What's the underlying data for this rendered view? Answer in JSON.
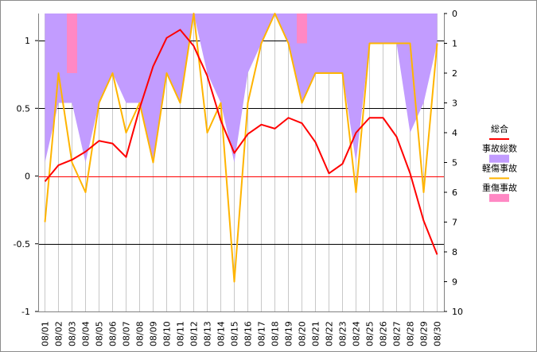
{
  "chart_data": {
    "type": "line",
    "title": "",
    "xlabel": "",
    "ylabel": "",
    "categories": [
      "08/01",
      "08/02",
      "08/03",
      "08/04",
      "08/05",
      "08/06",
      "08/07",
      "08/08",
      "08/09",
      "08/10",
      "08/11",
      "08/12",
      "08/13",
      "08/14",
      "08/15",
      "08/16",
      "08/17",
      "08/18",
      "08/19",
      "08/20",
      "08/21",
      "08/22",
      "08/23",
      "08/24",
      "08/25",
      "08/26",
      "08/27",
      "08/28",
      "08/29",
      "08/30"
    ],
    "axes": {
      "left": {
        "range": [
          -1,
          1.2
        ],
        "ticks": [
          1,
          0.5,
          0,
          -0.5,
          -1
        ],
        "tick_labels": [
          "1",
          "0.5",
          "0",
          "-0.5",
          "-1"
        ]
      },
      "right": {
        "range": [
          0,
          10
        ],
        "inverted": true,
        "ticks": [
          0,
          1,
          2,
          3,
          4,
          5,
          6,
          7,
          8,
          9,
          10
        ],
        "tick_labels": [
          "0",
          "1",
          "2",
          "3",
          "4",
          "5",
          "6",
          "7",
          "8",
          "9",
          "10"
        ]
      }
    },
    "grid": {
      "horizontal": true,
      "vertical": true,
      "zero_line_color": "#ff0000"
    },
    "legend": {
      "placement": "right"
    },
    "series": [
      {
        "name": "総合",
        "type": "line",
        "axis": "left",
        "color": "#ff0000",
        "values": [
          -0.04,
          0.08,
          0.12,
          0.18,
          0.26,
          0.24,
          0.14,
          0.5,
          0.81,
          1.02,
          1.08,
          0.96,
          0.74,
          0.41,
          0.17,
          0.31,
          0.38,
          0.35,
          0.43,
          0.39,
          0.25,
          0.02,
          0.09,
          0.32,
          0.43,
          0.43,
          0.29,
          0.02,
          -0.33,
          -0.58
        ]
      },
      {
        "name": "事故総数",
        "type": "area",
        "axis": "right",
        "color": "#c29cff",
        "values": [
          5,
          3,
          3,
          5,
          3,
          2,
          3,
          3,
          5,
          2,
          3,
          0,
          2,
          3,
          5,
          2,
          1,
          0,
          1,
          3,
          2,
          2,
          2,
          5,
          1,
          1,
          1,
          4,
          3,
          1
        ]
      },
      {
        "name": "軽傷事故",
        "type": "line",
        "axis": "right",
        "color": "#ffb400",
        "values": [
          7,
          2,
          5,
          6,
          3,
          2,
          4,
          3,
          5,
          2,
          3,
          0,
          4,
          3,
          9,
          3,
          1,
          0,
          1,
          3,
          2,
          2,
          2,
          6,
          1,
          1,
          1,
          1,
          6,
          1
        ]
      },
      {
        "name": "重傷事故",
        "type": "bar",
        "axis": "right",
        "color": "#ff88c4",
        "values": [
          0,
          0,
          2,
          0,
          0,
          0,
          0,
          0,
          0,
          0,
          0,
          0,
          0,
          0,
          0,
          0,
          0,
          0,
          0,
          1,
          0,
          0,
          0,
          0,
          0,
          0,
          0,
          0,
          0,
          0
        ]
      }
    ]
  }
}
